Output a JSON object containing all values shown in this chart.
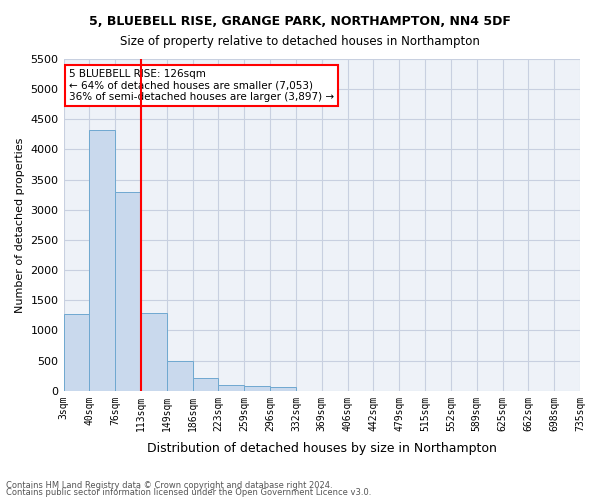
{
  "title1": "5, BLUEBELL RISE, GRANGE PARK, NORTHAMPTON, NN4 5DF",
  "title2": "Size of property relative to detached houses in Northampton",
  "xlabel": "Distribution of detached houses by size in Northampton",
  "ylabel": "Number of detached properties",
  "footnote1": "Contains HM Land Registry data © Crown copyright and database right 2024.",
  "footnote2": "Contains public sector information licensed under the Open Government Licence v3.0.",
  "annotation_line1": "5 BLUEBELL RISE: 126sqm",
  "annotation_line2": "← 64% of detached houses are smaller (7,053)",
  "annotation_line3": "36% of semi-detached houses are larger (3,897) →",
  "bar_values": [
    1270,
    4330,
    3300,
    1290,
    490,
    220,
    100,
    75,
    55,
    0,
    0,
    0,
    0,
    0,
    0,
    0,
    0,
    0,
    0,
    0
  ],
  "bin_labels": [
    "3sqm",
    "40sqm",
    "76sqm",
    "113sqm",
    "149sqm",
    "186sqm",
    "223sqm",
    "259sqm",
    "296sqm",
    "332sqm",
    "369sqm",
    "406sqm",
    "442sqm",
    "479sqm",
    "515sqm",
    "552sqm",
    "589sqm",
    "625sqm",
    "662sqm",
    "698sqm",
    "735sqm"
  ],
  "bar_color": "#c9d9ed",
  "bar_edge_color": "#6fa8d0",
  "grid_color": "#c8d0e0",
  "background_color": "#eef2f8",
  "vline_x": 3,
  "vline_color": "red",
  "ylim": [
    0,
    5500
  ],
  "yticks": [
    0,
    500,
    1000,
    1500,
    2000,
    2500,
    3000,
    3500,
    4000,
    4500,
    5000,
    5500
  ]
}
